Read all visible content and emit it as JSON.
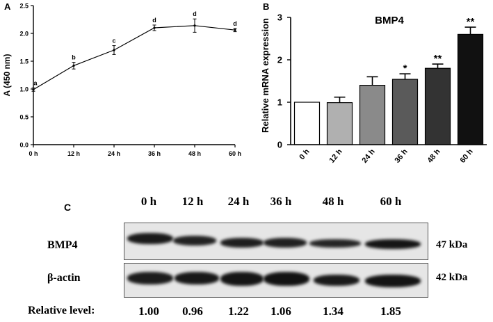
{
  "chart_data": [
    {
      "panel": "A",
      "type": "line",
      "ylabel": "A (450 nm)",
      "x": [
        "0 h",
        "12 h",
        "24 h",
        "36 h",
        "48 h",
        "60 h"
      ],
      "values": [
        0.99,
        1.42,
        1.7,
        2.1,
        2.14,
        2.06
      ],
      "errors": [
        0.03,
        0.06,
        0.08,
        0.05,
        0.12,
        0.03
      ],
      "annotations": [
        "a",
        "b",
        "c",
        "d",
        "d",
        "d"
      ],
      "ylim": [
        0,
        2.5
      ],
      "yticks": [
        "0.0",
        "0.5",
        "1.0",
        "1.5",
        "2.0",
        "2.5"
      ]
    },
    {
      "panel": "B",
      "type": "bar",
      "title": "BMP4",
      "ylabel": "Relative mRNA expression",
      "categories": [
        "0 h",
        "12 h",
        "24 h",
        "36 h",
        "48 h",
        "60 h"
      ],
      "values": [
        1.0,
        0.99,
        1.4,
        1.54,
        1.8,
        2.6
      ],
      "errors": [
        0.0,
        0.13,
        0.2,
        0.13,
        0.1,
        0.17
      ],
      "annotations": [
        "",
        "",
        "",
        "*",
        "**",
        "**"
      ],
      "colors": [
        "#ffffff",
        "#b0b0b0",
        "#8a8a8a",
        "#5a5a5a",
        "#333333",
        "#111111"
      ],
      "ylim": [
        0,
        3
      ],
      "yticks": [
        "0",
        "1",
        "2",
        "3"
      ]
    }
  ],
  "panelA": {
    "label": "A"
  },
  "panelB": {
    "label": "B"
  },
  "blot": {
    "label": "C",
    "lanes": [
      "0 h",
      "12 h",
      "24 h",
      "36 h",
      "48 h",
      "60 h"
    ],
    "rows": [
      {
        "name": "BMP4",
        "size": "47 kDa"
      },
      {
        "name": "β-actin",
        "size": "42 kDa"
      }
    ],
    "relative_label": "Relative level:",
    "relative_values": [
      "1.00",
      "0.96",
      "1.22",
      "1.06",
      "1.34",
      "1.85"
    ]
  }
}
